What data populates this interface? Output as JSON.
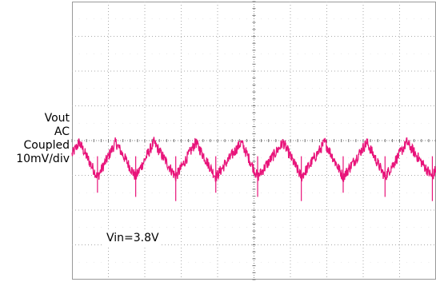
{
  "chart_data": {
    "type": "line",
    "title": "",
    "xlabel": "",
    "ylabel": "",
    "channel_label": [
      "Vout",
      "AC",
      "Coupled",
      "10mV/div"
    ],
    "annotation": "Vin=3.8V",
    "grid": true,
    "grid_divisions": {
      "x": 10,
      "y": 8
    },
    "ylim_div": [
      -4,
      4
    ],
    "series": [
      {
        "color": "#e8147a",
        "style": "triangle-ripple",
        "cycles": 9,
        "amplitude_div": 0.5,
        "offset_div": -0.55,
        "peaks_div_x": [
          0.2,
          1.2,
          2.25,
          3.4,
          4.65,
          5.8,
          6.95,
          8.1,
          9.2
        ],
        "troughs_div_x": [
          0.7,
          1.75,
          2.85,
          3.95,
          5.1,
          6.3,
          7.45,
          8.6,
          9.9
        ]
      }
    ]
  }
}
